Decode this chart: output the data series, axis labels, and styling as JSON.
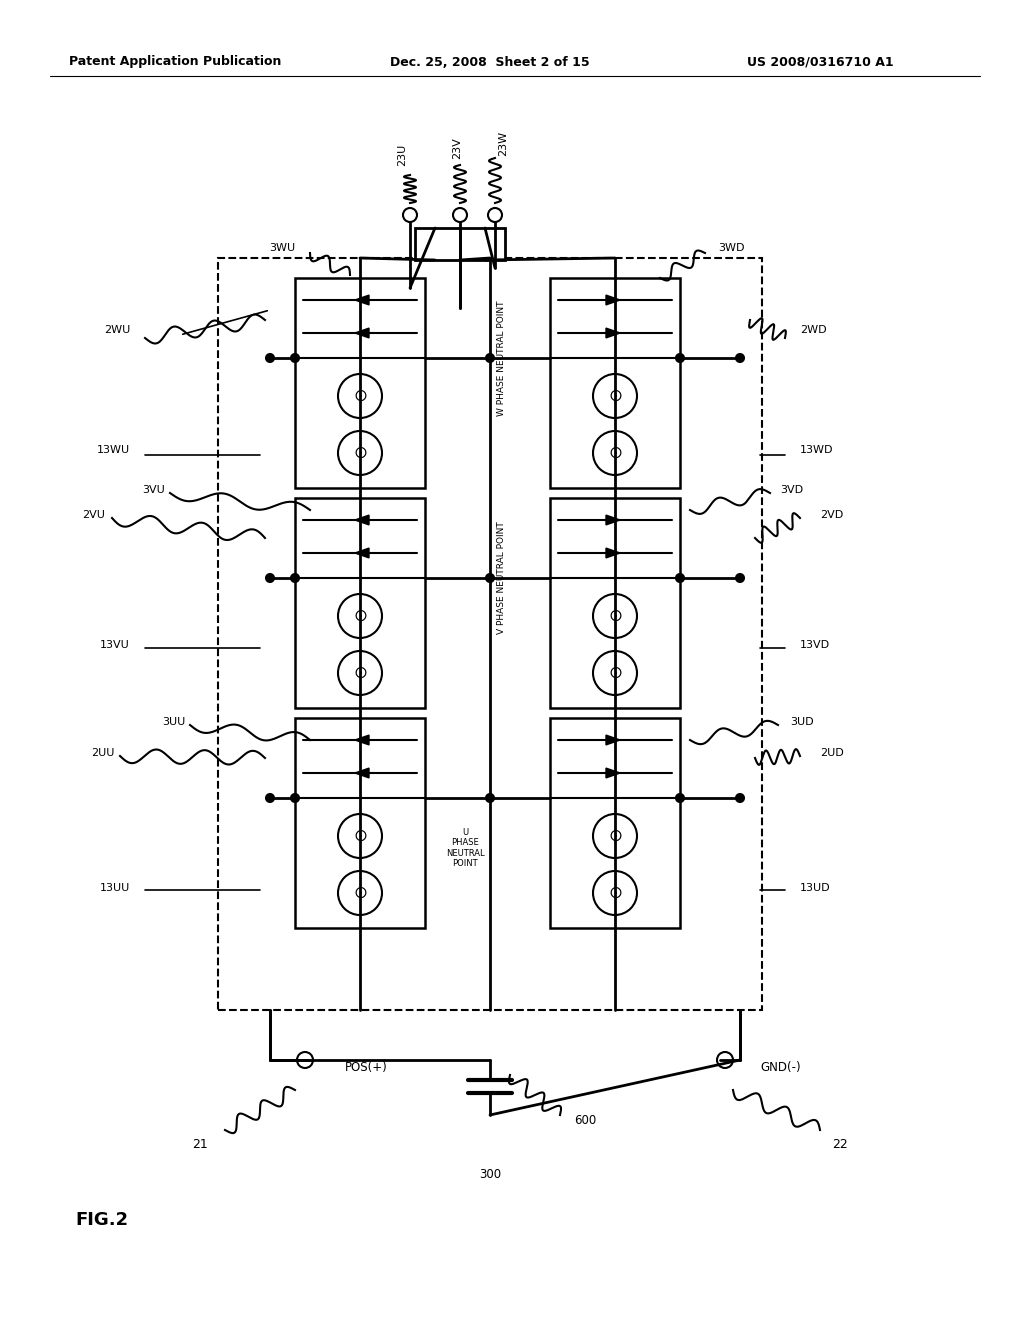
{
  "header_left": "Patent Application Publication",
  "header_mid": "Dec. 25, 2008  Sheet 2 of 15",
  "header_right": "US 2008/0316710 A1",
  "fig_label": "FIG.2",
  "bg_color": "#ffffff",
  "fg_color": "#000000"
}
